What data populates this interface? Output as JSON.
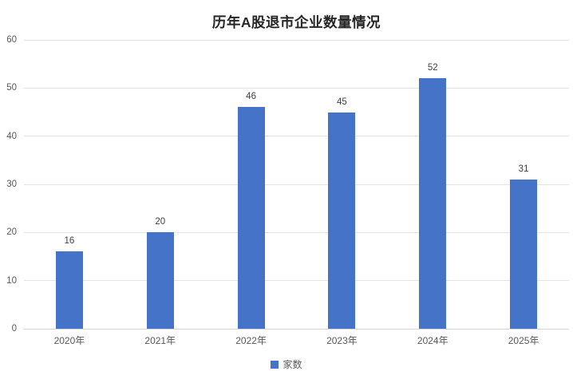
{
  "chart_data": {
    "type": "bar",
    "title": "历年A股退市企业数量情况",
    "categories": [
      "2020年",
      "2021年",
      "2022年",
      "2023年",
      "2024年",
      "2025年"
    ],
    "values": [
      16,
      20,
      46,
      45,
      52,
      31
    ],
    "series_name": "家数",
    "xlabel": "",
    "ylabel": "",
    "ylim": [
      0,
      60
    ],
    "ytick_step": 10,
    "ytick_labels": [
      "0",
      "10",
      "20",
      "30",
      "40",
      "50",
      "60"
    ],
    "grid": true,
    "data_labels_shown": true,
    "legend_position": "bottom",
    "colors": {
      "bar": "#4573C7",
      "gridline": "#E2E2E2",
      "axis_line": "#D6D6D6",
      "tick_label": "#595959",
      "data_label": "#404040",
      "title": "#262626",
      "background": "#FFFFFF"
    }
  }
}
